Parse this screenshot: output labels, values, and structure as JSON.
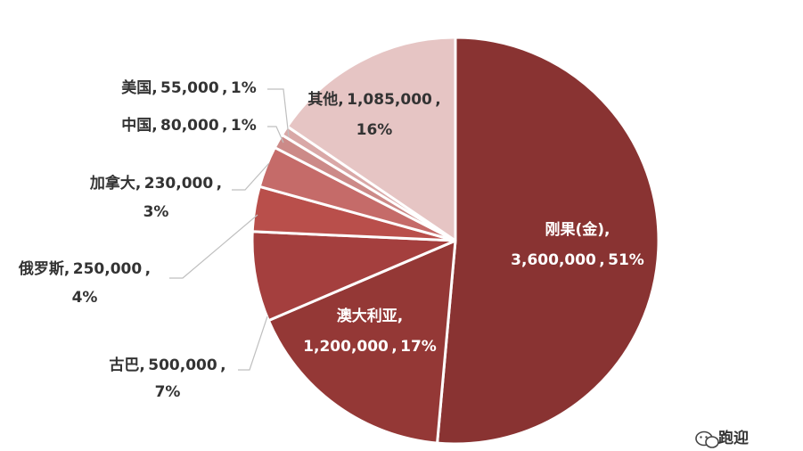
{
  "chart_data": {
    "type": "pie",
    "slices": [
      {
        "name": "刚果(金)",
        "value": 3600000,
        "value_label": "3,600,000",
        "percent_label": "51%",
        "color": "#893332"
      },
      {
        "name": "澳大利亚",
        "value": 1200000,
        "value_label": "1,200,000",
        "percent_label": "17%",
        "color": "#943836"
      },
      {
        "name": "古巴",
        "value": 500000,
        "value_label": "500,000",
        "percent_label": "7%",
        "color": "#A43F3E"
      },
      {
        "name": "俄罗斯",
        "value": 250000,
        "value_label": "250,000",
        "percent_label": "4%",
        "color": "#B94F4B"
      },
      {
        "name": "加拿大",
        "value": 230000,
        "value_label": "230,000",
        "percent_label": "3%",
        "color": "#C56B69"
      },
      {
        "name": "中国",
        "value": 80000,
        "value_label": "80,000",
        "percent_label": "1%",
        "color": "#CC8A88"
      },
      {
        "name": "美国",
        "value": 55000,
        "value_label": "55,000",
        "percent_label": "1%",
        "color": "#D9A8A7"
      },
      {
        "name": "其他",
        "value": 1085000,
        "value_label": "1,085,000",
        "percent_label": "16%",
        "color": "#E6C5C4"
      }
    ]
  },
  "watermark": {
    "text": "跑迎",
    "icon": "wechat-icon"
  }
}
